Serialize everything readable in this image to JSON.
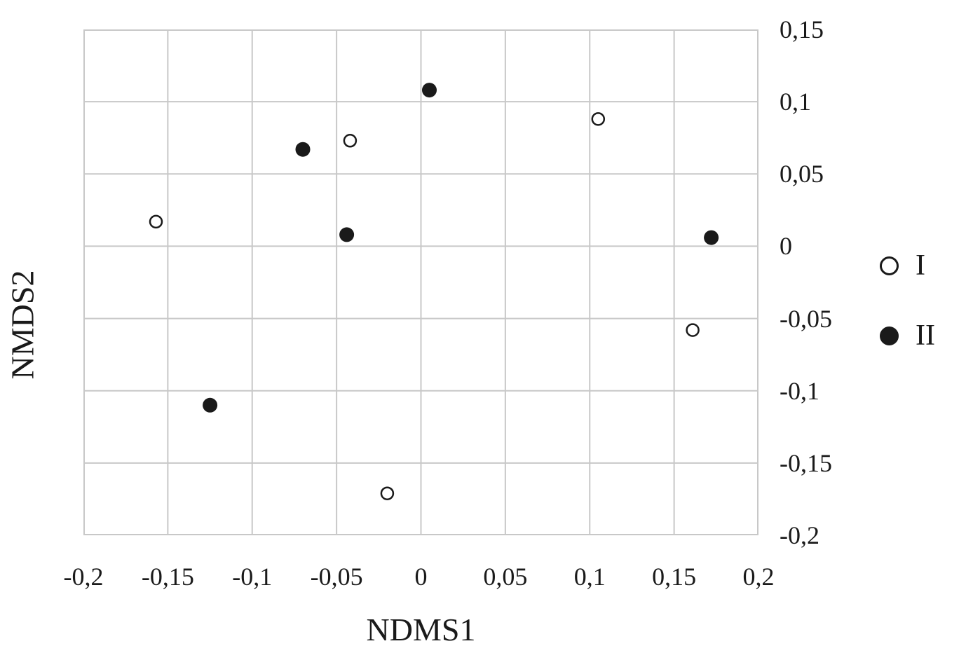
{
  "figure": {
    "background_color": "#ffffff",
    "grid_color": "#c8c8c8",
    "marker_color": "#1a1a1a"
  },
  "chart_data": {
    "type": "scatter",
    "title": "",
    "xlabel": "NDMS1",
    "ylabel": "NMDS2",
    "xlim": [
      -0.2,
      0.2
    ],
    "ylim": [
      -0.2,
      0.15
    ],
    "grid": true,
    "decimal_separator": ",",
    "x_ticks": [
      {
        "value": -0.2,
        "label": "-0,2"
      },
      {
        "value": -0.15,
        "label": "-0,15"
      },
      {
        "value": -0.1,
        "label": "-0,1"
      },
      {
        "value": -0.05,
        "label": "-0,05"
      },
      {
        "value": 0,
        "label": "0"
      },
      {
        "value": 0.05,
        "label": "0,05"
      },
      {
        "value": 0.1,
        "label": "0,1"
      },
      {
        "value": 0.15,
        "label": "0,15"
      },
      {
        "value": 0.2,
        "label": "0,2"
      }
    ],
    "y_ticks": [
      {
        "value": 0.15,
        "label": "0,15"
      },
      {
        "value": 0.1,
        "label": "0,1"
      },
      {
        "value": 0.05,
        "label": "0,05"
      },
      {
        "value": 0,
        "label": "0"
      },
      {
        "value": -0.05,
        "label": "-0,05"
      },
      {
        "value": -0.1,
        "label": "-0,1"
      },
      {
        "value": -0.15,
        "label": "-0,15"
      },
      {
        "value": -0.2,
        "label": "-0,2"
      }
    ],
    "series": [
      {
        "name": "I",
        "marker": "open-circle",
        "points": [
          [
            -0.157,
            0.017
          ],
          [
            -0.042,
            0.073
          ],
          [
            0.105,
            0.088
          ],
          [
            0.161,
            -0.058
          ],
          [
            -0.02,
            -0.171
          ]
        ]
      },
      {
        "name": "II",
        "marker": "filled-circle",
        "points": [
          [
            -0.07,
            0.067
          ],
          [
            -0.044,
            0.008
          ],
          [
            0.005,
            0.108
          ],
          [
            0.172,
            0.006
          ],
          [
            -0.125,
            -0.11
          ]
        ]
      }
    ],
    "legend": {
      "position": "right",
      "entries": [
        {
          "name": "I",
          "marker": "open-circle"
        },
        {
          "name": "II",
          "marker": "filled-circle"
        }
      ]
    }
  }
}
